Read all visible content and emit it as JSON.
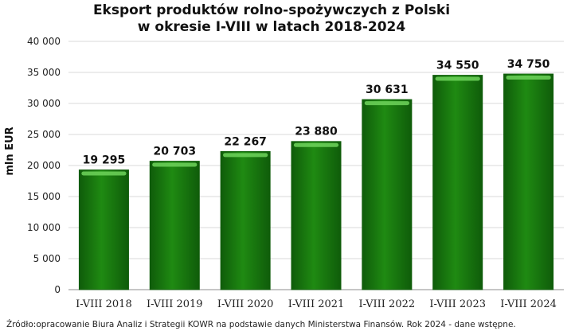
{
  "chart_data": {
    "type": "bar",
    "title_lines": [
      "Eksport produktów rolno-spożywczych z Polski",
      "w okresie I-VIII w latach 2018-2024"
    ],
    "ylabel": "mln EUR",
    "xlabel": "",
    "categories": [
      "I-VIII 2018",
      "I-VIII 2019",
      "I-VIII 2020",
      "I-VIII 2021",
      "I-VIII 2022",
      "I-VIII 2023",
      "I-VIII 2024"
    ],
    "values": [
      19295,
      20703,
      22267,
      23880,
      30631,
      34550,
      34750
    ],
    "value_labels": [
      "19 295",
      "20 703",
      "22 267",
      "23 880",
      "30 631",
      "34 550",
      "34 750"
    ],
    "ylim": [
      0,
      40000
    ],
    "yticks": [
      0,
      5000,
      10000,
      15000,
      20000,
      25000,
      30000,
      35000,
      40000
    ],
    "ytick_labels": [
      "0",
      "5 000",
      "10 000",
      "15 000",
      "20 000",
      "25 000",
      "30 000",
      "35 000",
      "40 000"
    ],
    "grid": true,
    "bar_color": "#1f8a12",
    "bar_color_dark": "#0f5c0a",
    "bar_highlight": "#6fd35c"
  },
  "source": "Źródło:opracowanie Biura Analiz i Strategii KOWR na podstawie danych Ministerstwa Finansów. Rok 2024 - dane wstępne."
}
